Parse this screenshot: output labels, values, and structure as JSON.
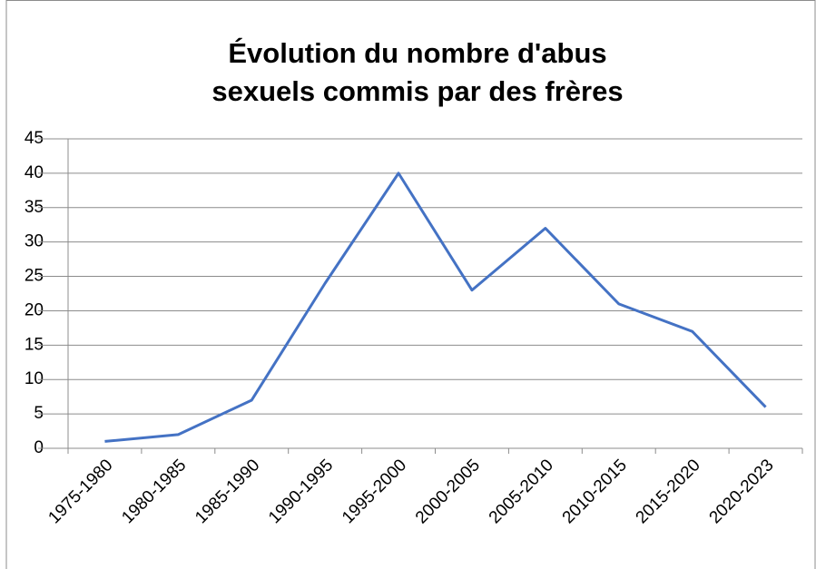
{
  "chart_data": {
    "type": "line",
    "title": "Évolution du nombre d'abus sexuels commis par des frères",
    "categories": [
      "1975-1980",
      "1980-1985",
      "1985-1990",
      "1990-1995",
      "1995-2000",
      "2000-2005",
      "2005-2010",
      "2010-2015",
      "2015-2020",
      "2020-2023"
    ],
    "series": [
      {
        "color": "#4472c4",
        "values": [
          1,
          2,
          7,
          24,
          40,
          23,
          32,
          21,
          17,
          6
        ]
      }
    ],
    "ylim": [
      0,
      45
    ],
    "yticks": [
      0,
      5,
      10,
      15,
      20,
      25,
      30,
      35,
      40,
      45
    ],
    "grid": true
  }
}
